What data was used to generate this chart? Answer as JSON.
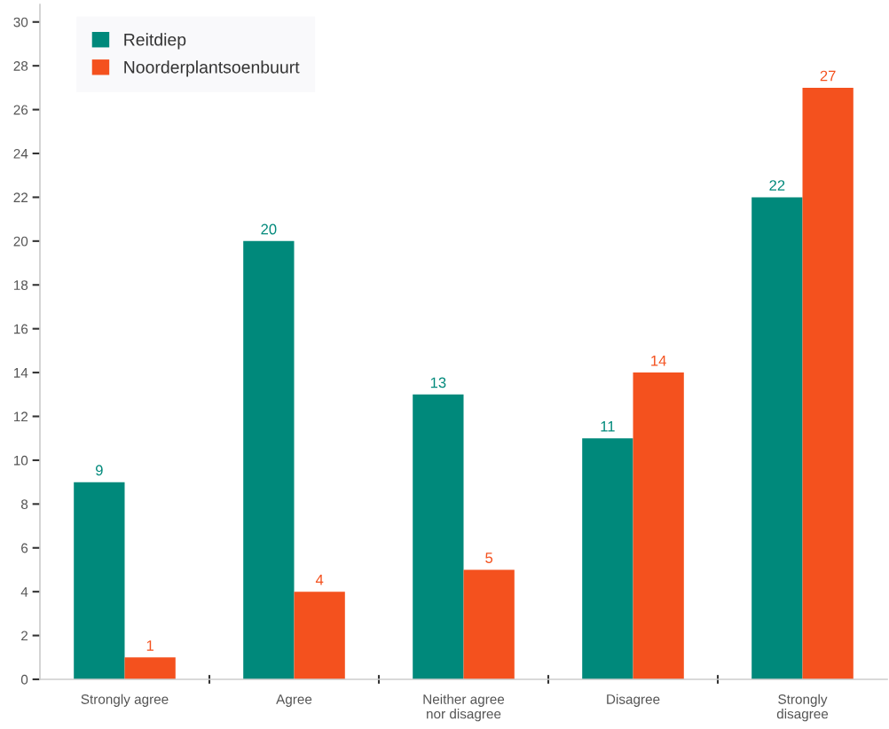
{
  "chart_data": {
    "type": "bar",
    "categories": [
      "Strongly agree",
      "Agree",
      "Neither agree\nnor disagree",
      "Disagree",
      "Strongly\ndisagree"
    ],
    "series": [
      {
        "name": "Reitdiep",
        "color": "#00897b",
        "values": [
          9,
          20,
          13,
          11,
          22
        ]
      },
      {
        "name": "Noorderplantsoenbuurt",
        "color": "#f4511e",
        "values": [
          1,
          4,
          5,
          14,
          27
        ]
      }
    ],
    "ylim": [
      0,
      30.8
    ],
    "yticks": [
      0,
      2,
      4,
      6,
      8,
      10,
      12,
      14,
      16,
      18,
      20,
      22,
      24,
      26,
      28,
      30
    ],
    "legend": "top left",
    "data_labels": true
  }
}
